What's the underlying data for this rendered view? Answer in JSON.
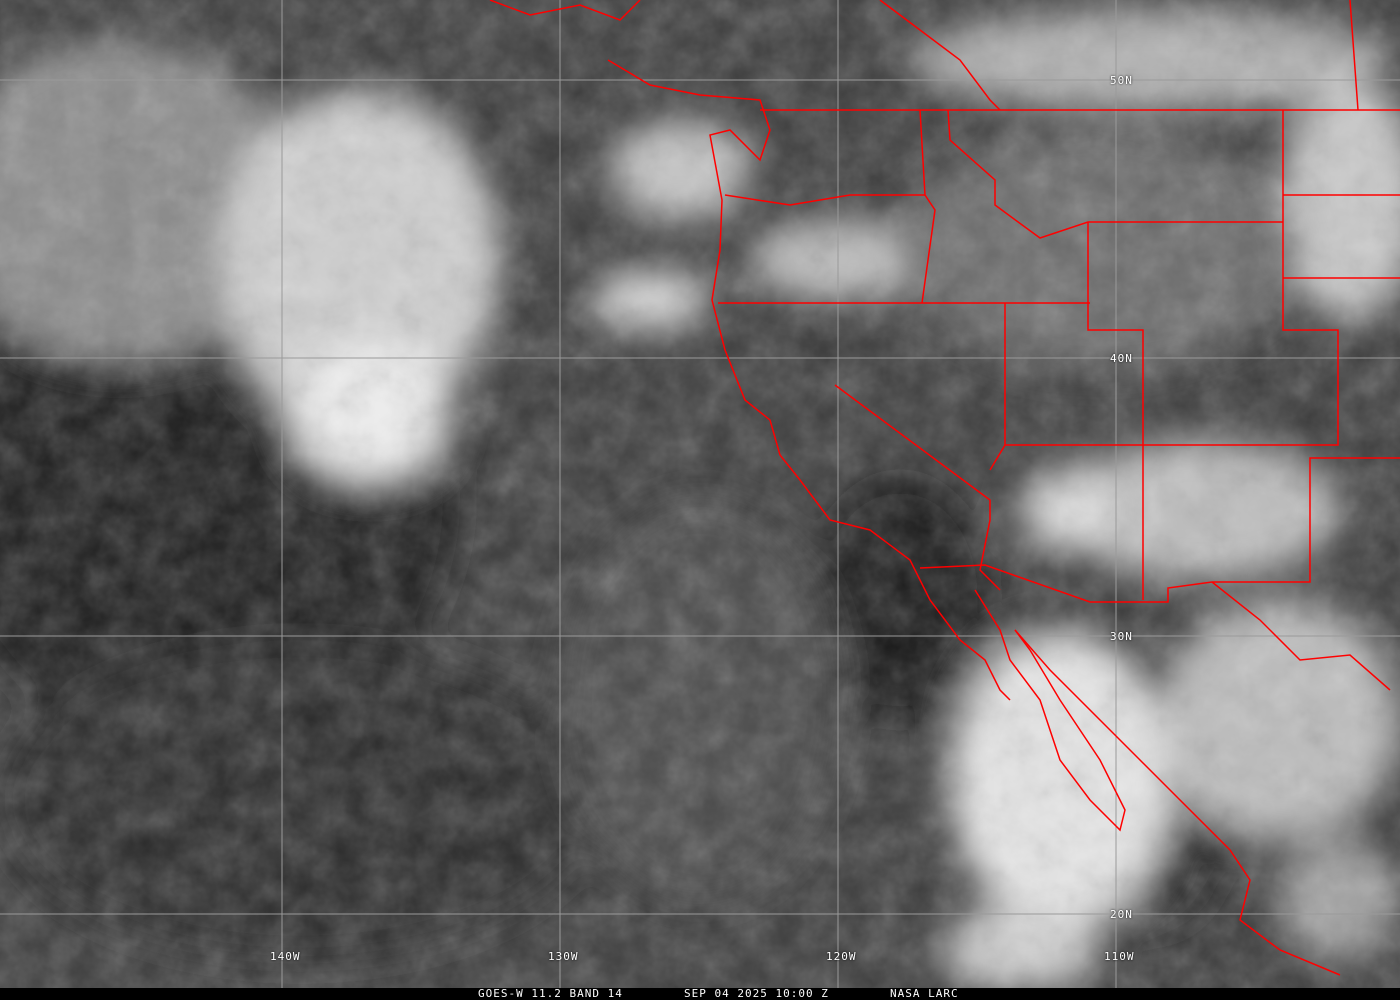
{
  "caption": {
    "satellite": "GOES-W 11.2 BAND 14",
    "datetime": "SEP 04 2025 10:00 Z",
    "credit": "NASA LARC"
  },
  "lat_labels": [
    "50N",
    "40N",
    "30N",
    "20N"
  ],
  "lon_labels": [
    "140W",
    "130W",
    "120W",
    "110W"
  ],
  "colors": {
    "boundaries": "#ff0000",
    "grid": "#9a9a9a",
    "caption_bg": "#000000"
  }
}
